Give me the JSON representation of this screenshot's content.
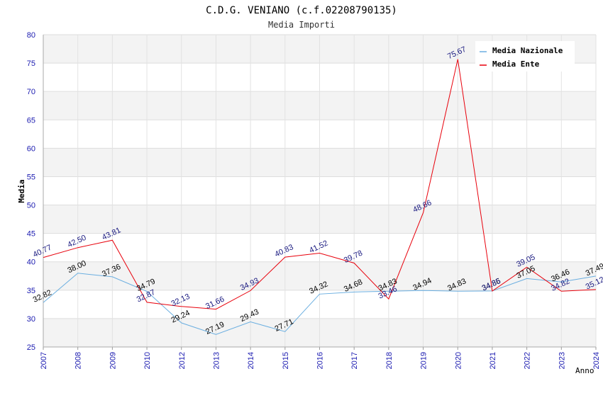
{
  "chart_data": {
    "type": "line",
    "title": "C.D.G. VENIANO (c.f.02208790135)",
    "subtitle": "Media Importi",
    "xlabel": "Anno",
    "ylabel": "Media",
    "ylim": [
      25,
      80
    ],
    "yticks": [
      "25",
      "30",
      "35",
      "40",
      "45",
      "50",
      "55",
      "60",
      "65",
      "70",
      "75",
      "80"
    ],
    "categories": [
      "2007",
      "2008",
      "2009",
      "2010",
      "2012",
      "2013",
      "2014",
      "2015",
      "2016",
      "2017",
      "2018",
      "2019",
      "2020",
      "2021",
      "2022",
      "2023",
      "2024"
    ],
    "grid": true,
    "legend_position": "top-right",
    "series": [
      {
        "name": "Media Nazionale",
        "color": "#6aaee0",
        "label_color": "#000000",
        "values": [
          32.82,
          38.0,
          37.36,
          34.79,
          29.24,
          27.19,
          29.43,
          27.71,
          34.32,
          34.68,
          34.83,
          34.94,
          34.83,
          34.86,
          37.05,
          36.46,
          37.49
        ],
        "labels": [
          "32.82",
          "38.00",
          "37.36",
          "34.79",
          "29.24",
          "27.19",
          "29.43",
          "27.71",
          "34.32",
          "34.68",
          "34.83",
          "34.94",
          "34.83",
          "34.86",
          "37.05",
          "36.46",
          "37.49"
        ]
      },
      {
        "name": "Media Ente",
        "color": "#e8000b",
        "label_color": "#1a1a80",
        "values": [
          40.77,
          42.5,
          43.81,
          32.87,
          32.13,
          31.66,
          34.93,
          40.83,
          41.52,
          39.78,
          33.46,
          48.66,
          75.67,
          34.85,
          39.05,
          34.82,
          35.12
        ],
        "labels": [
          "40.77",
          "42.50",
          "43.81",
          "32.87",
          "32.13",
          "31.66",
          "34.93",
          "40.83",
          "41.52",
          "39.78",
          "33.46",
          "48.66",
          "75.67",
          "34.85",
          "39.05",
          "34.82",
          "35.12"
        ]
      }
    ]
  }
}
